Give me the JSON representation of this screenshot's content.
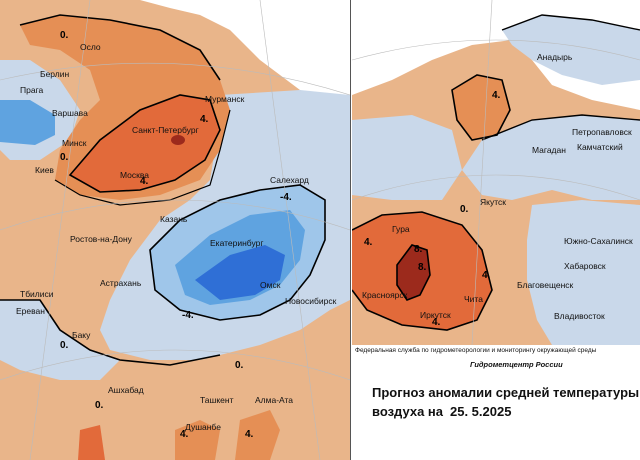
{
  "colors": {
    "very_cold": "#2f6fd6",
    "cold": "#5fa3e0",
    "cool": "#9fc6ea",
    "slightly_cool": "#c9d8ea",
    "slightly_warm": "#e9b58a",
    "warm": "#e58f55",
    "hot": "#e26a3a",
    "very_hot": "#d94e2f",
    "extreme": "#9c2a1c"
  },
  "isolines": [
    "-4.",
    "0.",
    "4.",
    "8."
  ],
  "west_map": {
    "cities": [
      "Осло",
      "Берлин",
      "Прага",
      "Варшава",
      "Минск",
      "Киев",
      "Санкт-Петербург",
      "Мурманск",
      "Москва",
      "Салехард",
      "Казань",
      "Ростов-на-Дону",
      "Екатеринбург",
      "Астрахань",
      "Омск",
      "Новосибирск",
      "Тбилиси",
      "Ереван",
      "Баку",
      "Ашхабад",
      "Ташкент",
      "Алма-Ата",
      "Душанбе"
    ]
  },
  "east_map": {
    "cities": [
      "Анадырь",
      "Петропавловск",
      "Камчатский",
      "Магадан",
      "Якутск",
      "Южно-Сахалинск",
      "Хабаровск",
      "Благовещенск",
      "Владивосток",
      "Гура",
      "Красноярск",
      "Иркутск",
      "Чита"
    ]
  },
  "credits": {
    "agency_full": "Федеральная служба по гидрометеорологии и мониторингу окружающей среды",
    "agency_short": "Гидрометцентр России"
  },
  "title": {
    "line1": "Прогноз аномалии средней температуры",
    "line2": "воздуха на",
    "date": "25. 5.2025"
  }
}
